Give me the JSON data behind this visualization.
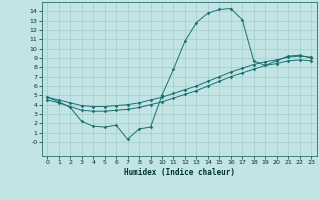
{
  "xlabel": "Humidex (Indice chaleur)",
  "bg_color": "#c2e4e4",
  "grid_color": "#a8d0d0",
  "line_color": "#1a7070",
  "xlim": [
    -0.5,
    23.5
  ],
  "ylim": [
    -1.5,
    15.0
  ],
  "xticks": [
    0,
    1,
    2,
    3,
    4,
    5,
    6,
    7,
    8,
    9,
    10,
    11,
    12,
    13,
    14,
    15,
    16,
    17,
    18,
    19,
    20,
    21,
    22,
    23
  ],
  "yticks": [
    0,
    1,
    2,
    3,
    4,
    5,
    6,
    7,
    8,
    9,
    10,
    11,
    12,
    13,
    14
  ],
  "ytick_labels": [
    "-0",
    "1",
    "2",
    "3",
    "4",
    "5",
    "6",
    "7",
    "8",
    "9",
    "10",
    "11",
    "12",
    "13",
    "14"
  ],
  "line1_x": [
    0,
    1,
    2,
    3,
    4,
    5,
    6,
    7,
    8,
    9,
    10,
    11,
    12,
    13,
    14,
    15,
    16,
    17,
    18,
    19,
    20,
    21,
    22,
    23
  ],
  "line1_y": [
    4.8,
    4.5,
    4.2,
    3.9,
    3.8,
    3.8,
    3.9,
    4.0,
    4.2,
    4.5,
    4.8,
    5.2,
    5.6,
    6.0,
    6.5,
    7.0,
    7.5,
    7.9,
    8.3,
    8.6,
    8.8,
    9.1,
    9.2,
    9.1
  ],
  "line2_x": [
    0,
    1,
    2,
    3,
    4,
    5,
    6,
    7,
    8,
    9,
    10,
    11,
    12,
    13,
    14,
    15,
    16,
    17,
    18,
    19,
    20,
    21,
    22,
    23
  ],
  "line2_y": [
    4.5,
    4.2,
    3.8,
    3.4,
    3.3,
    3.3,
    3.4,
    3.5,
    3.7,
    4.0,
    4.3,
    4.7,
    5.1,
    5.5,
    6.0,
    6.5,
    7.0,
    7.4,
    7.8,
    8.2,
    8.4,
    8.7,
    8.8,
    8.7
  ],
  "line3_x": [
    0,
    1,
    2,
    3,
    4,
    5,
    6,
    7,
    8,
    9,
    10,
    11,
    12,
    13,
    14,
    15,
    16,
    17,
    18,
    19,
    20,
    21,
    22,
    23
  ],
  "line3_y": [
    4.8,
    4.3,
    3.7,
    2.2,
    1.7,
    1.6,
    1.8,
    0.3,
    1.4,
    1.6,
    5.0,
    7.8,
    10.8,
    12.8,
    13.8,
    14.2,
    14.3,
    13.1,
    8.7,
    8.2,
    8.7,
    9.2,
    9.3,
    9.0
  ]
}
